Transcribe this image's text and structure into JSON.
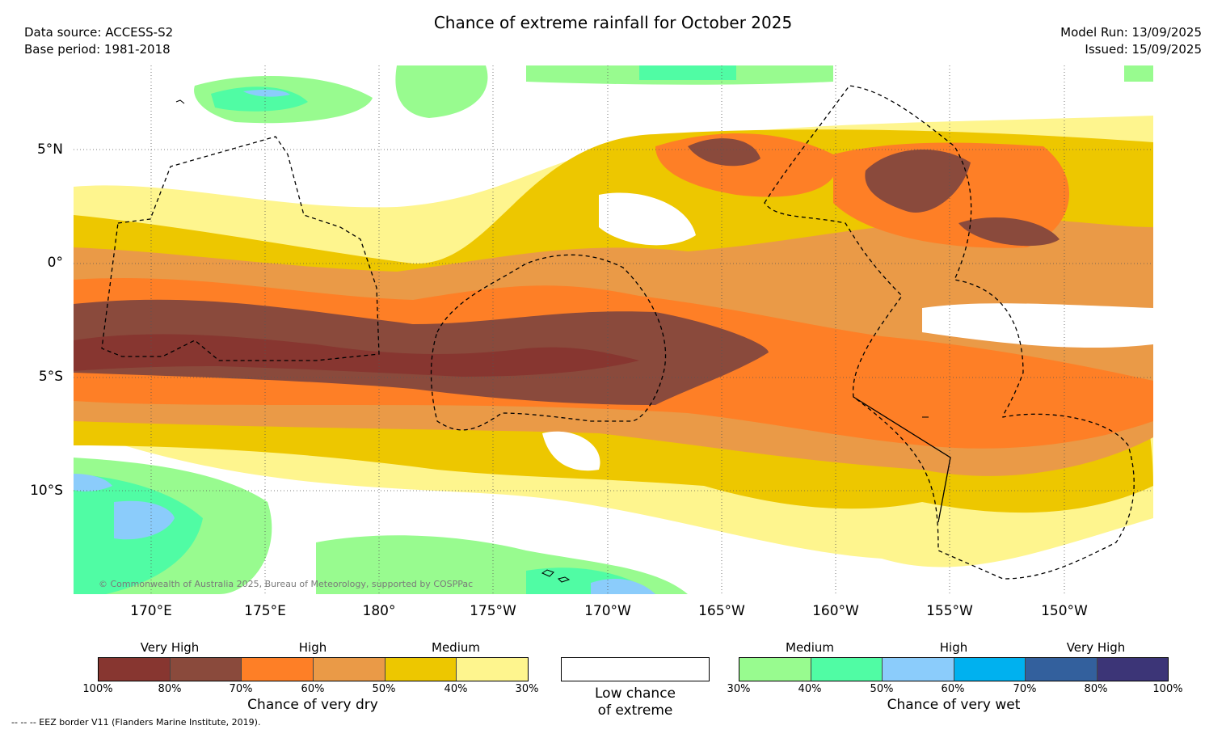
{
  "title": "Chance of extreme rainfall for October 2025",
  "header": {
    "data_source": "Data source: ACCESS-S2",
    "base_period": "Base period: 1981-2018",
    "model_run": "Model Run: 13/09/2025",
    "issued": "Issued: 15/09/2025"
  },
  "map": {
    "lat_labels": [
      "5°N",
      "0°",
      "5°S",
      "10°S"
    ],
    "lon_labels": [
      "170°E",
      "175°E",
      "180°",
      "175°W",
      "170°W",
      "165°W",
      "160°W",
      "155°W",
      "150°W"
    ],
    "copyright": "© Commonwealth of Australia 2025, Bureau of Meteorology, supported by COSPPac"
  },
  "legend": {
    "dry": {
      "title": "Chance of very dry",
      "categories": [
        "Very High",
        "High",
        "Medium"
      ],
      "ticks": [
        "100%",
        "80%",
        "70%",
        "60%",
        "50%",
        "40%",
        "30%"
      ],
      "colors": [
        "#873630",
        "#8a4a3c",
        "#fe7f26",
        "#ea9a47",
        "#edc700",
        "#fef58e"
      ]
    },
    "neutral": {
      "line1": "Low chance",
      "line2": "of extreme"
    },
    "wet": {
      "title": "Chance of very wet",
      "categories": [
        "Medium",
        "High",
        "Very High"
      ],
      "ticks": [
        "30%",
        "40%",
        "50%",
        "60%",
        "70%",
        "80%",
        "100%"
      ],
      "colors": [
        "#98fb8f",
        "#50fca4",
        "#8bccfb",
        "#00b1ef",
        "#33609d",
        "#3c3577"
      ]
    }
  },
  "footnote": "--  --  -- EEZ border V11 (Flanders Marine Institute, 2019)."
}
